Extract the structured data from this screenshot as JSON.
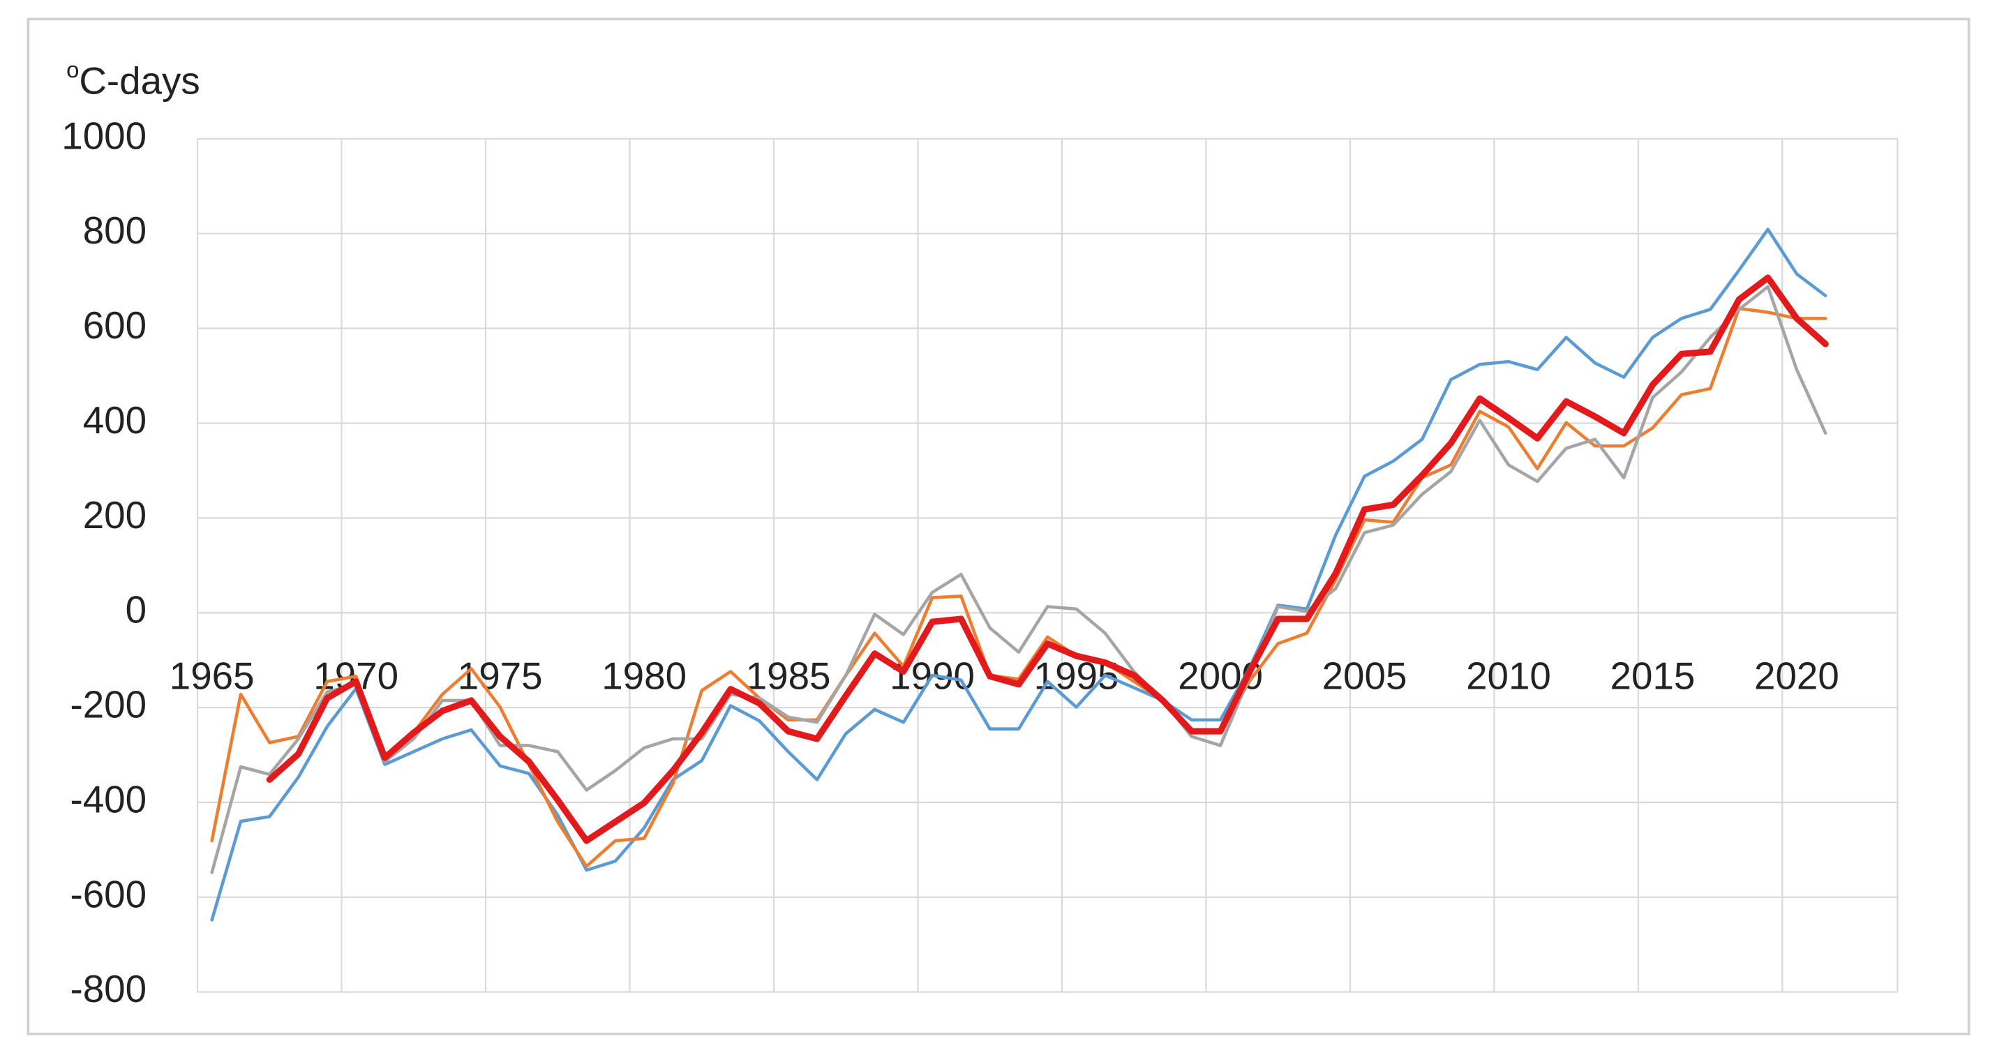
{
  "chart_data": {
    "type": "line",
    "y_label_sup": "o",
    "y_label": "C-days",
    "categories": [
      1965,
      null,
      null,
      null,
      null,
      1970,
      null,
      null,
      null,
      null,
      1975,
      null,
      null,
      null,
      null,
      1980,
      null,
      null,
      null,
      null,
      1985,
      null,
      null,
      null,
      null,
      1990,
      null,
      null,
      null,
      null,
      1995,
      null,
      null,
      null,
      null,
      2000,
      null,
      null,
      null,
      null,
      2005,
      null,
      null,
      null,
      null,
      2010,
      null,
      null,
      null,
      null,
      2015,
      null,
      null,
      null,
      null,
      2020,
      null,
      null,
      null
    ],
    "series": [
      {
        "color": "#5b9bd5",
        "width": 2.5,
        "values": [
          -648,
          -440,
          -430,
          -347,
          -240,
          -160,
          -320,
          -293,
          -266,
          -247,
          -323,
          -339,
          -427,
          -543,
          -524,
          -454,
          -352,
          -312,
          -196,
          -228,
          -293,
          -352,
          -255,
          -204,
          -231,
          -132,
          -142,
          -245,
          -245,
          -145,
          -199,
          -132,
          -158,
          -185,
          -226,
          -226,
          -118,
          16,
          8,
          164,
          288,
          320,
          366,
          492,
          524,
          530,
          513,
          581,
          527,
          497,
          581,
          621,
          640,
          723,
          809,
          715,
          669,
          null,
          null
        ]
      },
      {
        "color": "#ed7d31",
        "width": 2.5,
        "values": [
          -481,
          -172,
          -274,
          -261,
          -145,
          -134,
          -306,
          -253,
          -172,
          -118,
          -199,
          -320,
          -441,
          -535,
          -481,
          -476,
          -360,
          -164,
          -124,
          -180,
          -226,
          -226,
          -132,
          -43,
          -113,
          32,
          35,
          -132,
          -140,
          -51,
          -91,
          -105,
          -145,
          -185,
          -253,
          -253,
          -145,
          -65,
          -43,
          70,
          196,
          191,
          285,
          312,
          425,
          392,
          304,
          401,
          352,
          352,
          390,
          460,
          473,
          642,
          634,
          621,
          621,
          null,
          null
        ]
      },
      {
        "color": "#a5a5a5",
        "width": 2.5,
        "values": [
          -548,
          -325,
          -341,
          -266,
          -167,
          -151,
          -314,
          -266,
          -185,
          -185,
          -280,
          -280,
          -293,
          -374,
          -333,
          -285,
          -266,
          -266,
          -172,
          -180,
          -220,
          -231,
          -132,
          -3,
          -46,
          43,
          81,
          -32,
          -83,
          13,
          8,
          -43,
          -124,
          -185,
          -261,
          -280,
          -137,
          13,
          3,
          51,
          169,
          185,
          250,
          298,
          406,
          312,
          277,
          347,
          366,
          285,
          454,
          508,
          581,
          640,
          688,
          513,
          379,
          null,
          null
        ]
      },
      {
        "color": "#e31a1c",
        "width": 5,
        "values": [
          null,
          null,
          -352,
          -298,
          -180,
          -145,
          -306,
          -253,
          -207,
          -185,
          -261,
          -314,
          -395,
          -481,
          -441,
          -401,
          -333,
          -253,
          -161,
          -191,
          -250,
          -266,
          -175,
          -86,
          -124,
          -19,
          -13,
          -134,
          -151,
          -65,
          -91,
          -105,
          -132,
          -185,
          -250,
          -250,
          -126,
          -13,
          -13,
          83,
          218,
          228,
          290,
          358,
          452,
          411,
          368,
          446,
          414,
          379,
          481,
          546,
          551,
          661,
          707,
          621,
          567,
          null,
          null
        ]
      }
    ],
    "ylim": [
      -800,
      1000
    ],
    "yticks": [
      -800,
      -600,
      -400,
      -200,
      0,
      200,
      400,
      600,
      800,
      1000
    ],
    "grid": true
  }
}
